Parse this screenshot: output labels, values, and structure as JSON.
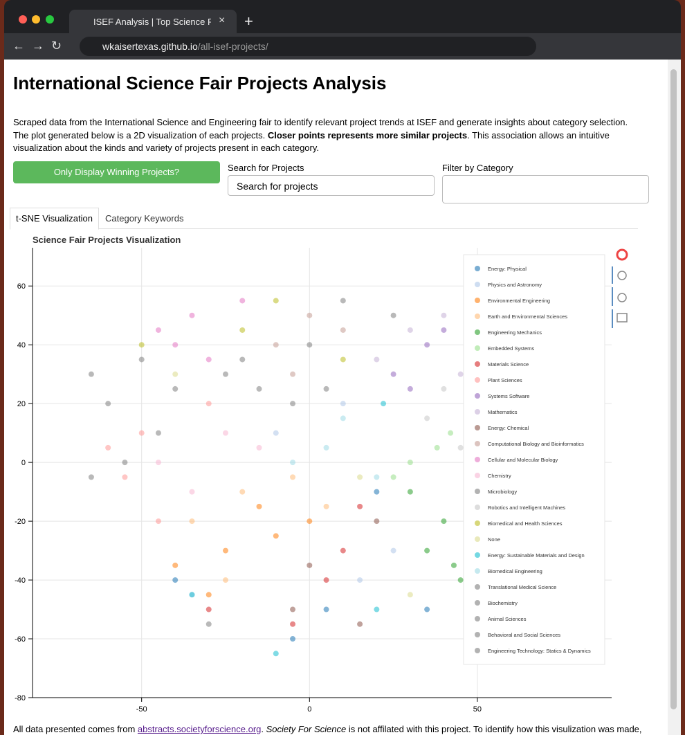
{
  "browser": {
    "tab_title": "ISEF Analysis | Top Science Fair",
    "url_host": "wkaisertexas.github.io",
    "url_path": "/all-isef-projects/"
  },
  "page": {
    "title": "International Science Fair Projects Analysis",
    "description": {
      "before": "Scraped data from the International Science and Engineering fair to identify relevant project trends at ISEF and generate insights about category selection. The plot generated below is a 2D visualization of each projects. ",
      "bold": "Closer points represents more similar projects",
      "after": ". This association allows an intuitive visualization about the kinds and variety of projects present in each category."
    },
    "button": "Only Display Winning Projects?",
    "search_label": "Search for Projects",
    "search_value": "Search for projects",
    "filter_label": "Filter by Category",
    "tabs": [
      "t-SNE Visualization",
      "Category Keywords"
    ],
    "footer": {
      "before": "All data presented comes from ",
      "link": "abstracts.societyforscience.org",
      "mid": ". ",
      "italic": "Society For Science",
      "after": " is not affilated with this project. To identify how this visulization was made,"
    }
  },
  "chart_data": {
    "type": "scatter",
    "title": "Science Fair Projects Visualization",
    "xlim": [
      -82.5,
      90
    ],
    "ylim": [
      -80,
      73
    ],
    "xticks": [
      -50,
      0,
      50
    ],
    "yticks": [
      -80,
      -60,
      -40,
      -20,
      0,
      20,
      40,
      60
    ],
    "grid": true,
    "legend": "upper right",
    "series": [
      {
        "name": "Energy: Physical",
        "color": "#1f77b4",
        "x": [
          -40,
          5,
          35,
          -5,
          20
        ],
        "y": [
          -40,
          -50,
          -50,
          -60,
          -10
        ]
      },
      {
        "name": "Physics and Astronomy",
        "color": "#aec7e8",
        "x": [
          -35,
          10,
          25,
          15,
          -10
        ],
        "y": [
          -45,
          20,
          -30,
          -40,
          10
        ]
      },
      {
        "name": "Environmental Engineering",
        "color": "#ff7f0e",
        "x": [
          -25,
          -10,
          -30,
          0,
          -15,
          -40
        ],
        "y": [
          -30,
          -25,
          -45,
          -20,
          -15,
          -35
        ]
      },
      {
        "name": "Earth and Environmental Sciences",
        "color": "#ffbb78",
        "x": [
          -20,
          -35,
          -5,
          -25,
          5
        ],
        "y": [
          -10,
          -20,
          -5,
          -40,
          -15
        ]
      },
      {
        "name": "Engineering Mechanics",
        "color": "#2ca02c",
        "x": [
          40,
          45,
          35,
          30,
          43
        ],
        "y": [
          -20,
          -40,
          -30,
          -10,
          -35
        ]
      },
      {
        "name": "Embedded Systems",
        "color": "#98df8a",
        "x": [
          30,
          38,
          25,
          42
        ],
        "y": [
          0,
          5,
          -5,
          10
        ]
      },
      {
        "name": "Materials Science",
        "color": "#d62728",
        "x": [
          10,
          -30,
          15,
          5,
          -5
        ],
        "y": [
          -30,
          -50,
          -15,
          -40,
          -55
        ]
      },
      {
        "name": "Plant Sciences",
        "color": "#ff9896",
        "x": [
          -55,
          -60,
          -45,
          -50,
          -30
        ],
        "y": [
          -5,
          5,
          -20,
          10,
          20
        ]
      },
      {
        "name": "Systems Software",
        "color": "#9467bd",
        "x": [
          25,
          35,
          30,
          40
        ],
        "y": [
          30,
          40,
          25,
          45
        ]
      },
      {
        "name": "Mathematics",
        "color": "#c5b0d5",
        "x": [
          20,
          40,
          30,
          45
        ],
        "y": [
          35,
          50,
          45,
          30
        ]
      },
      {
        "name": "Energy: Chemical",
        "color": "#8c564b",
        "x": [
          0,
          20,
          -5,
          15
        ],
        "y": [
          -35,
          -20,
          -50,
          -55
        ]
      },
      {
        "name": "Computational Biology and Bioinformatics",
        "color": "#c49c94",
        "x": [
          -10,
          0,
          -5,
          10
        ],
        "y": [
          40,
          50,
          30,
          45
        ]
      },
      {
        "name": "Cellular and Molecular Biology",
        "color": "#e377c2",
        "x": [
          -35,
          -40,
          -20,
          -30,
          -45
        ],
        "y": [
          50,
          40,
          55,
          35,
          45
        ]
      },
      {
        "name": "Chemistry",
        "color": "#f7b6d2",
        "x": [
          -25,
          -45,
          -15,
          -35
        ],
        "y": [
          10,
          0,
          5,
          -10
        ]
      },
      {
        "name": "Microbiology",
        "color": "#7f7f7f",
        "x": [
          -60,
          -55,
          -45,
          -65
        ],
        "y": [
          20,
          0,
          10,
          -5
        ]
      },
      {
        "name": "Robotics and Intelligent Machines",
        "color": "#c7c7c7",
        "x": [
          35,
          45,
          50,
          40
        ],
        "y": [
          15,
          5,
          -10,
          25
        ]
      },
      {
        "name": "Biomedical and Health Sciences",
        "color": "#bcbd22",
        "x": [
          -50,
          -20,
          -10,
          10
        ],
        "y": [
          40,
          45,
          55,
          35
        ]
      },
      {
        "name": "None",
        "color": "#dbdb8d",
        "x": [
          15,
          -40,
          30
        ],
        "y": [
          -5,
          30,
          -45
        ]
      },
      {
        "name": "Energy: Sustainable Materials and Design",
        "color": "#17becf",
        "x": [
          -10,
          20,
          -35,
          22
        ],
        "y": [
          -65,
          -50,
          -45,
          20
        ]
      },
      {
        "name": "Biomedical Engineering",
        "color": "#9edae5",
        "x": [
          5,
          -5,
          10,
          20
        ],
        "y": [
          5,
          0,
          15,
          -5
        ]
      },
      {
        "name": "Translational Medical Science",
        "color": "#7f7f7f",
        "x": [
          -20,
          -15,
          0
        ],
        "y": [
          35,
          25,
          40
        ]
      },
      {
        "name": "Biochemistry",
        "color": "#7f7f7f",
        "x": [
          -5,
          5,
          -25
        ],
        "y": [
          20,
          25,
          30
        ]
      },
      {
        "name": "Animal Sciences",
        "color": "#7f7f7f",
        "x": [
          -40,
          -50
        ],
        "y": [
          25,
          35
        ]
      },
      {
        "name": "Behavioral and Social Sciences",
        "color": "#7f7f7f",
        "x": [
          10,
          25
        ],
        "y": [
          55,
          50
        ]
      },
      {
        "name": "Engineering Technology: Statics & Dynamics",
        "color": "#7f7f7f",
        "x": [
          -65,
          -30
        ],
        "y": [
          30,
          -55
        ]
      }
    ]
  }
}
